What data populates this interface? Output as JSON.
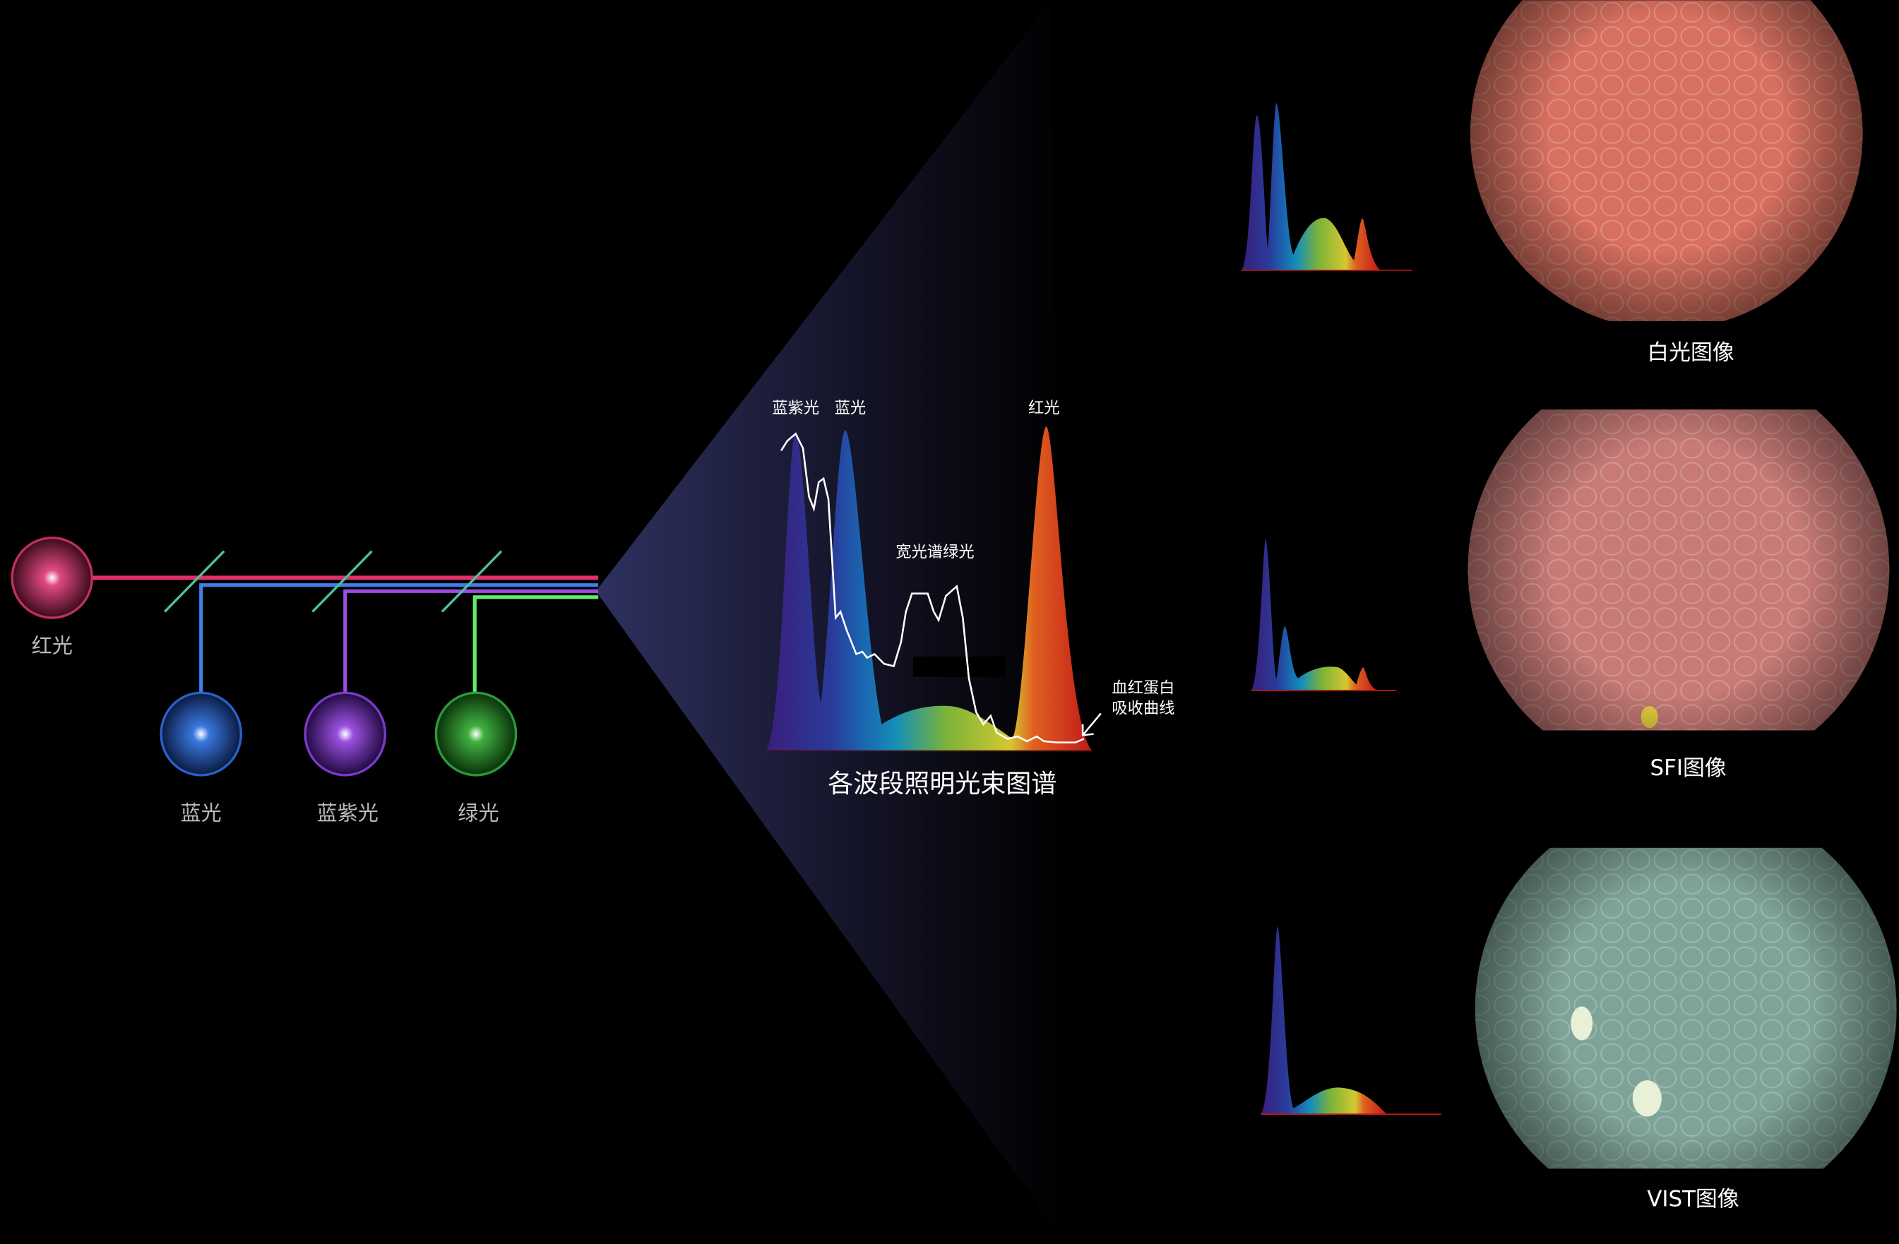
{
  "sources": [
    {
      "label": "红光",
      "color": "#e0306a"
    },
    {
      "label": "蓝光",
      "color": "#3f7fe8"
    },
    {
      "label": "蓝紫光",
      "color": "#9a4ee0"
    },
    {
      "label": "绿光",
      "color": "#5ef06a"
    }
  ],
  "spectrum": {
    "title": "各波段照明光束图谱",
    "peak_labels": {
      "violet": "蓝紫光",
      "blue": "蓝光",
      "red": "红光",
      "green": "宽光谱绿光"
    },
    "absorption_label_line1": "血红蛋白",
    "absorption_label_line2": "吸收曲线"
  },
  "modes": [
    {
      "label": "白光图像",
      "tint": "#d8705f"
    },
    {
      "label": "SFI图像",
      "tint": "#c77a76"
    },
    {
      "label": "VIST图像",
      "tint": "#7fa399"
    }
  ]
}
